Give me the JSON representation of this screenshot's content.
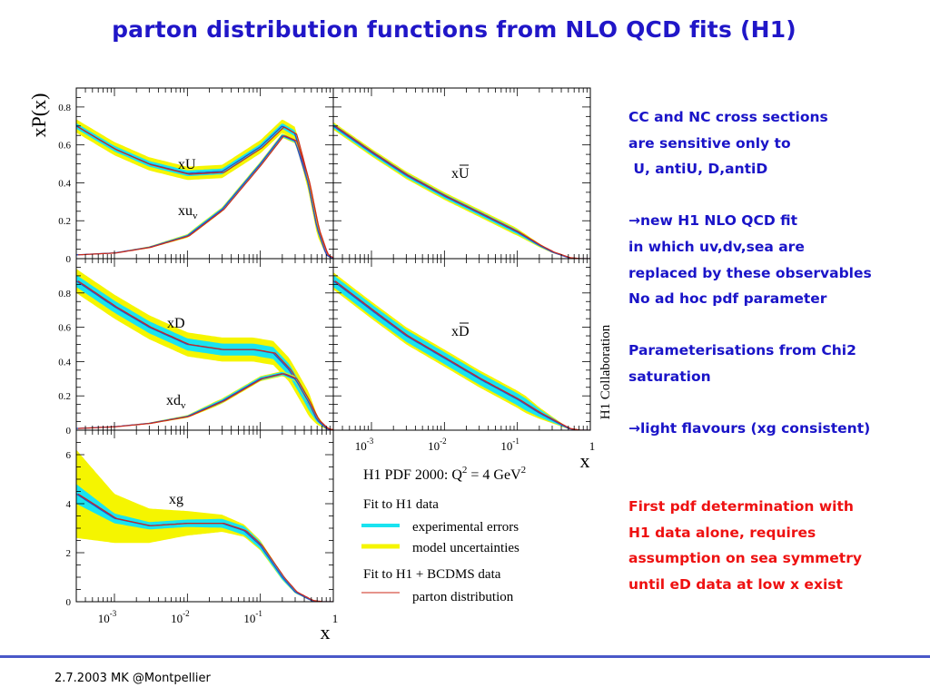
{
  "title": "parton distribution functions from NLO QCD fits (H1)",
  "footer": "2.7.2003 MK @Montpellier",
  "notes": {
    "blue": [
      "CC and NC cross sections",
      "are sensitive only to",
      " U, antiU, D,antiD",
      "",
      "→new H1 NLO QCD fit",
      "in which uv,dv,sea are",
      "replaced by these observables",
      "No ad hoc pdf parameter",
      "",
      "Parameterisations from Chi2",
      "saturation",
      "",
      "→light flavours (xg consistent)"
    ],
    "red": [
      "First pdf determination with",
      "H1 data alone, requires",
      "assumption on sea symmetry",
      "until eD data at low x exist"
    ]
  },
  "colors": {
    "title": "#2016c8",
    "notes_blue": "#1a14c8",
    "notes_red": "#ee1111",
    "experimental": "#19e3f0",
    "model": "#f5f500",
    "fit_bcdms": "#cc2a1a",
    "fit_h1": "#2b4cc8"
  },
  "figure": {
    "y_axis_title": "xP(x)",
    "x_axis_title": "x",
    "x_tick_labels": [
      {
        "base": "10",
        "exp": "-3"
      },
      {
        "base": "10",
        "exp": "-2"
      },
      {
        "base": "10",
        "exp": "-1"
      },
      {
        "base": "1",
        "exp": ""
      }
    ],
    "side_label": "H1 Collaboration",
    "legend": {
      "header": "H1 PDF 2000:",
      "q2_label": "Q",
      "q2_exp": "2",
      "q2_value": " = 4 GeV",
      "q2_unit_exp": "2",
      "group1": "Fit to H1 data",
      "exp_errors": "experimental errors",
      "model_unc": "model uncertainties",
      "group2": "Fit to H1 + BCDMS data",
      "parton": "parton distribution"
    }
  },
  "chart_data": [
    {
      "type": "line",
      "panel": "xU",
      "xscale": "log",
      "xlim": [
        0.0003,
        1
      ],
      "ylim": [
        0,
        0.9
      ],
      "y_tick_labels": [
        "0",
        "0.2",
        "0.4",
        "0.6",
        "0.8"
      ],
      "curve_labels": [
        {
          "text": "xU",
          "sub": ""
        },
        {
          "text": "xu",
          "sub": "v"
        }
      ],
      "series": [
        {
          "x": [
            0.0003,
            0.001,
            0.003,
            0.01,
            0.03,
            0.1,
            0.2,
            0.3,
            0.45,
            0.6,
            0.8,
            1
          ],
          "y": [
            0.7,
            0.58,
            0.5,
            0.45,
            0.46,
            0.59,
            0.7,
            0.66,
            0.4,
            0.16,
            0.02,
            0
          ],
          "band_exp": 0.015,
          "band_model": 0.035
        },
        {
          "x": [
            0.0003,
            0.001,
            0.003,
            0.01,
            0.03,
            0.1,
            0.2,
            0.3,
            0.45,
            0.6,
            0.8,
            1
          ],
          "y": [
            0.02,
            0.03,
            0.06,
            0.12,
            0.26,
            0.5,
            0.65,
            0.62,
            0.4,
            0.16,
            0.02,
            0
          ],
          "band_exp": 0.008,
          "band_model": 0.012
        }
      ]
    },
    {
      "type": "line",
      "panel": "xUbar",
      "xscale": "log",
      "xlim": [
        0.0003,
        1
      ],
      "ylim": [
        0,
        0.9
      ],
      "curve_labels": [
        {
          "text": "xU",
          "sub": "",
          "bar": true
        }
      ],
      "series": [
        {
          "x": [
            0.0003,
            0.001,
            0.003,
            0.01,
            0.03,
            0.1,
            0.2,
            0.3,
            0.5,
            0.7,
            1
          ],
          "y": [
            0.7,
            0.56,
            0.44,
            0.33,
            0.24,
            0.14,
            0.07,
            0.035,
            0.005,
            0.0,
            0
          ],
          "band_exp": 0.012,
          "band_model": 0.02
        }
      ]
    },
    {
      "type": "line",
      "panel": "xD",
      "xscale": "log",
      "xlim": [
        0.0003,
        1
      ],
      "ylim": [
        0,
        1.0
      ],
      "y_tick_labels": [
        "0",
        "0.2",
        "0.4",
        "0.6",
        "0.8"
      ],
      "curve_labels": [
        {
          "text": "xD",
          "sub": ""
        },
        {
          "text": "xd",
          "sub": "v"
        }
      ],
      "series": [
        {
          "x": [
            0.0003,
            0.001,
            0.003,
            0.01,
            0.03,
            0.08,
            0.15,
            0.25,
            0.4,
            0.6,
            0.8,
            1
          ],
          "y": [
            0.87,
            0.72,
            0.6,
            0.5,
            0.47,
            0.47,
            0.45,
            0.35,
            0.2,
            0.06,
            0.01,
            0
          ],
          "band_exp": 0.035,
          "band_model": 0.07
        },
        {
          "x": [
            0.0003,
            0.001,
            0.003,
            0.01,
            0.03,
            0.1,
            0.2,
            0.3,
            0.45,
            0.6,
            0.8,
            1
          ],
          "y": [
            0.01,
            0.02,
            0.04,
            0.08,
            0.17,
            0.3,
            0.33,
            0.3,
            0.17,
            0.06,
            0.01,
            0
          ],
          "band_exp": 0.01,
          "band_model": 0.015
        }
      ]
    },
    {
      "type": "line",
      "panel": "xDbar",
      "xscale": "log",
      "xlim": [
        0.0003,
        1
      ],
      "ylim": [
        0,
        1.0
      ],
      "curve_labels": [
        {
          "text": "xD",
          "sub": "",
          "bar": true
        }
      ],
      "series": [
        {
          "x": [
            0.0003,
            0.001,
            0.003,
            0.01,
            0.03,
            0.1,
            0.2,
            0.3,
            0.5,
            0.7,
            1
          ],
          "y": [
            0.87,
            0.7,
            0.55,
            0.42,
            0.3,
            0.18,
            0.1,
            0.06,
            0.01,
            0.0,
            0
          ],
          "band_exp": 0.035,
          "band_model": 0.05
        }
      ]
    },
    {
      "type": "line",
      "panel": "xg",
      "xscale": "log",
      "xlim": [
        0.0003,
        1
      ],
      "ylim": [
        0,
        7
      ],
      "y_tick_labels": [
        "0",
        "2",
        "4",
        "6"
      ],
      "curve_labels": [
        {
          "text": "xg",
          "sub": ""
        }
      ],
      "series": [
        {
          "x": [
            0.0003,
            0.001,
            0.003,
            0.01,
            0.03,
            0.06,
            0.1,
            0.2,
            0.3,
            0.5,
            0.7,
            1
          ],
          "y": [
            4.4,
            3.4,
            3.1,
            3.2,
            3.2,
            2.9,
            2.3,
            1.0,
            0.4,
            0.05,
            0.0,
            0
          ],
          "band_exp": [
            0.4,
            0.2,
            0.15,
            0.15,
            0.18,
            0.18,
            0.15,
            0.1,
            0.05,
            0.02,
            0,
            0
          ],
          "band_model": [
            1.8,
            1.0,
            0.7,
            0.5,
            0.35,
            0.25,
            0.2,
            0.12,
            0.06,
            0.02,
            0,
            0
          ]
        }
      ]
    }
  ]
}
